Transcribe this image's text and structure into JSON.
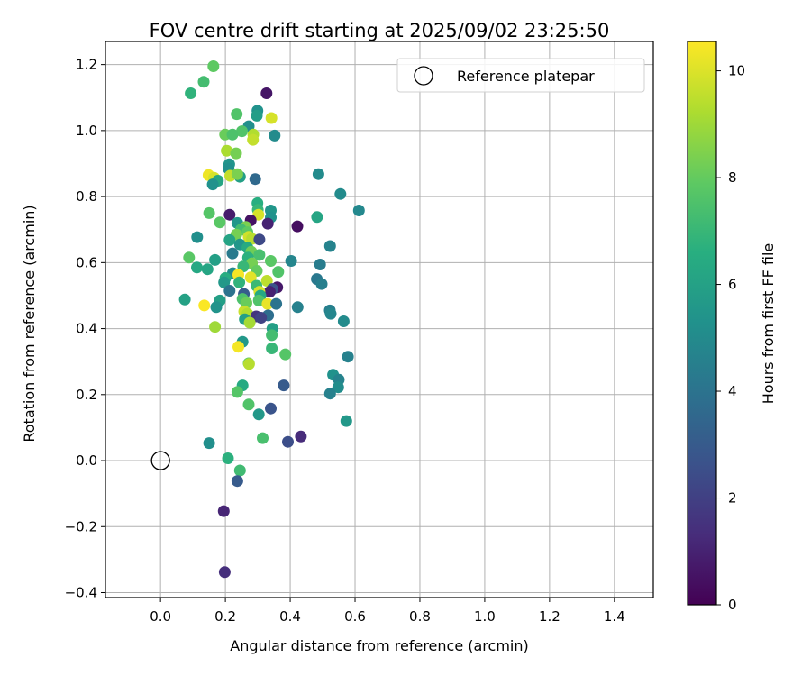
{
  "chart_data": {
    "type": "scatter",
    "title": "FOV centre drift starting at 2025/09/02 23:25:50",
    "xlabel": "Angular distance from reference (arcmin)",
    "ylabel": "Rotation from reference (arcmin)",
    "xlim": [
      -0.17,
      1.52
    ],
    "ylim": [
      -0.415,
      1.27
    ],
    "xticks": [
      0.0,
      0.2,
      0.4,
      0.6,
      0.8,
      1.0,
      1.2,
      1.4
    ],
    "xtick_labels": [
      "0.0",
      "0.2",
      "0.4",
      "0.6",
      "0.8",
      "1.0",
      "1.2",
      "1.4"
    ],
    "yticks": [
      -0.4,
      -0.2,
      0.0,
      0.2,
      0.4,
      0.6,
      0.8,
      1.0,
      1.2
    ],
    "ytick_labels": [
      "−0.4",
      "−0.2",
      "0.0",
      "0.2",
      "0.4",
      "0.6",
      "0.8",
      "1.0",
      "1.2"
    ],
    "grid": true,
    "colormap": "viridis",
    "colorbar": {
      "label": "Hours from first FF file",
      "range": [
        0,
        10.55
      ],
      "ticks": [
        0,
        2,
        4,
        6,
        8,
        10
      ],
      "tick_labels": [
        "0",
        "2",
        "4",
        "6",
        "8",
        "10"
      ]
    },
    "legend": {
      "label": "Reference platepar",
      "position": "top-right"
    },
    "reference_point": {
      "x": 0.0,
      "y": 0.0
    },
    "points": [
      {
        "x": 0.163,
        "y": 1.195,
        "h": 7.9
      },
      {
        "x": 0.133,
        "y": 1.148,
        "h": 7.3
      },
      {
        "x": 0.093,
        "y": 1.113,
        "h": 6.8
      },
      {
        "x": 0.327,
        "y": 1.113,
        "h": 0.6
      },
      {
        "x": 0.299,
        "y": 1.06,
        "h": 5.3
      },
      {
        "x": 0.235,
        "y": 1.05,
        "h": 7.6
      },
      {
        "x": 0.297,
        "y": 1.045,
        "h": 5.8
      },
      {
        "x": 0.342,
        "y": 1.038,
        "h": 9.9
      },
      {
        "x": 0.272,
        "y": 1.013,
        "h": 5.2
      },
      {
        "x": 0.251,
        "y": 0.998,
        "h": 7.6
      },
      {
        "x": 0.199,
        "y": 0.988,
        "h": 8.1
      },
      {
        "x": 0.222,
        "y": 0.988,
        "h": 7.5
      },
      {
        "x": 0.286,
        "y": 0.988,
        "h": 9.3
      },
      {
        "x": 0.352,
        "y": 0.985,
        "h": 5.0
      },
      {
        "x": 0.285,
        "y": 0.972,
        "h": 9.6
      },
      {
        "x": 0.204,
        "y": 0.939,
        "h": 9.2
      },
      {
        "x": 0.233,
        "y": 0.931,
        "h": 8.3
      },
      {
        "x": 0.212,
        "y": 0.898,
        "h": 5.4
      },
      {
        "x": 0.21,
        "y": 0.884,
        "h": 5.2
      },
      {
        "x": 0.487,
        "y": 0.868,
        "h": 5.0
      },
      {
        "x": 0.148,
        "y": 0.865,
        "h": 10.3
      },
      {
        "x": 0.215,
        "y": 0.863,
        "h": 9.6
      },
      {
        "x": 0.245,
        "y": 0.86,
        "h": 5.9
      },
      {
        "x": 0.237,
        "y": 0.868,
        "h": 8.4
      },
      {
        "x": 0.165,
        "y": 0.857,
        "h": 9.9
      },
      {
        "x": 0.292,
        "y": 0.853,
        "h": 3.6
      },
      {
        "x": 0.177,
        "y": 0.848,
        "h": 6.2
      },
      {
        "x": 0.161,
        "y": 0.837,
        "h": 5.3
      },
      {
        "x": 0.555,
        "y": 0.808,
        "h": 5.0
      },
      {
        "x": 0.299,
        "y": 0.78,
        "h": 6.6
      },
      {
        "x": 0.612,
        "y": 0.758,
        "h": 4.9
      },
      {
        "x": 0.34,
        "y": 0.758,
        "h": 5.5
      },
      {
        "x": 0.15,
        "y": 0.75,
        "h": 7.7
      },
      {
        "x": 0.3,
        "y": 0.76,
        "h": 7.0
      },
      {
        "x": 0.302,
        "y": 0.745,
        "h": 9.9
      },
      {
        "x": 0.483,
        "y": 0.738,
        "h": 6.2
      },
      {
        "x": 0.213,
        "y": 0.745,
        "h": 0.8
      },
      {
        "x": 0.34,
        "y": 0.737,
        "h": 5.3
      },
      {
        "x": 0.278,
        "y": 0.728,
        "h": 0.5
      },
      {
        "x": 0.183,
        "y": 0.722,
        "h": 7.8
      },
      {
        "x": 0.237,
        "y": 0.72,
        "h": 5.5
      },
      {
        "x": 0.331,
        "y": 0.718,
        "h": 1.0
      },
      {
        "x": 0.263,
        "y": 0.708,
        "h": 8.4
      },
      {
        "x": 0.422,
        "y": 0.71,
        "h": 0.4
      },
      {
        "x": 0.248,
        "y": 0.7,
        "h": 7.3
      },
      {
        "x": 0.268,
        "y": 0.692,
        "h": 7.9
      },
      {
        "x": 0.234,
        "y": 0.685,
        "h": 8.3
      },
      {
        "x": 0.272,
        "y": 0.678,
        "h": 9.8
      },
      {
        "x": 0.113,
        "y": 0.677,
        "h": 5.2
      },
      {
        "x": 0.282,
        "y": 0.672,
        "h": 9.4
      },
      {
        "x": 0.305,
        "y": 0.67,
        "h": 2.3
      },
      {
        "x": 0.213,
        "y": 0.668,
        "h": 6.1
      },
      {
        "x": 0.523,
        "y": 0.65,
        "h": 4.7
      },
      {
        "x": 0.245,
        "y": 0.655,
        "h": 5.5
      },
      {
        "x": 0.268,
        "y": 0.645,
        "h": 6.4
      },
      {
        "x": 0.28,
        "y": 0.633,
        "h": 8.2
      },
      {
        "x": 0.222,
        "y": 0.628,
        "h": 4.3
      },
      {
        "x": 0.305,
        "y": 0.623,
        "h": 7.4
      },
      {
        "x": 0.088,
        "y": 0.615,
        "h": 7.8
      },
      {
        "x": 0.27,
        "y": 0.615,
        "h": 6.7
      },
      {
        "x": 0.168,
        "y": 0.608,
        "h": 5.9
      },
      {
        "x": 0.403,
        "y": 0.605,
        "h": 4.8
      },
      {
        "x": 0.34,
        "y": 0.605,
        "h": 7.8
      },
      {
        "x": 0.282,
        "y": 0.598,
        "h": 8.3
      },
      {
        "x": 0.492,
        "y": 0.594,
        "h": 4.4
      },
      {
        "x": 0.255,
        "y": 0.588,
        "h": 7.0
      },
      {
        "x": 0.112,
        "y": 0.585,
        "h": 6.3
      },
      {
        "x": 0.145,
        "y": 0.58,
        "h": 6.2
      },
      {
        "x": 0.297,
        "y": 0.575,
        "h": 8.0
      },
      {
        "x": 0.363,
        "y": 0.572,
        "h": 7.6
      },
      {
        "x": 0.223,
        "y": 0.568,
        "h": 5.0
      },
      {
        "x": 0.24,
        "y": 0.563,
        "h": 10.4
      },
      {
        "x": 0.278,
        "y": 0.555,
        "h": 10.1
      },
      {
        "x": 0.2,
        "y": 0.553,
        "h": 6.5
      },
      {
        "x": 0.482,
        "y": 0.55,
        "h": 4.2
      },
      {
        "x": 0.196,
        "y": 0.54,
        "h": 5.6
      },
      {
        "x": 0.328,
        "y": 0.545,
        "h": 9.5
      },
      {
        "x": 0.243,
        "y": 0.54,
        "h": 6.8
      },
      {
        "x": 0.497,
        "y": 0.535,
        "h": 4.5
      },
      {
        "x": 0.296,
        "y": 0.53,
        "h": 7.1
      },
      {
        "x": 0.36,
        "y": 0.525,
        "h": 0.7
      },
      {
        "x": 0.213,
        "y": 0.515,
        "h": 4.0
      },
      {
        "x": 0.345,
        "y": 0.52,
        "h": 2.7
      },
      {
        "x": 0.337,
        "y": 0.512,
        "h": 1.0
      },
      {
        "x": 0.305,
        "y": 0.512,
        "h": 9.9
      },
      {
        "x": 0.257,
        "y": 0.505,
        "h": 3.1
      },
      {
        "x": 0.308,
        "y": 0.5,
        "h": 6.3
      },
      {
        "x": 0.253,
        "y": 0.49,
        "h": 7.5
      },
      {
        "x": 0.075,
        "y": 0.488,
        "h": 6.0
      },
      {
        "x": 0.183,
        "y": 0.485,
        "h": 5.9
      },
      {
        "x": 0.265,
        "y": 0.478,
        "h": 8.1
      },
      {
        "x": 0.303,
        "y": 0.485,
        "h": 7.6
      },
      {
        "x": 0.33,
        "y": 0.475,
        "h": 10.2
      },
      {
        "x": 0.357,
        "y": 0.475,
        "h": 4.0
      },
      {
        "x": 0.135,
        "y": 0.47,
        "h": 10.5
      },
      {
        "x": 0.172,
        "y": 0.465,
        "h": 5.4
      },
      {
        "x": 0.423,
        "y": 0.465,
        "h": 4.6
      },
      {
        "x": 0.522,
        "y": 0.455,
        "h": 4.5
      },
      {
        "x": 0.258,
        "y": 0.452,
        "h": 9.7
      },
      {
        "x": 0.268,
        "y": 0.445,
        "h": 9.3
      },
      {
        "x": 0.525,
        "y": 0.445,
        "h": 4.8
      },
      {
        "x": 0.332,
        "y": 0.44,
        "h": 3.8
      },
      {
        "x": 0.295,
        "y": 0.437,
        "h": 1.6
      },
      {
        "x": 0.31,
        "y": 0.433,
        "h": 2.1
      },
      {
        "x": 0.26,
        "y": 0.428,
        "h": 5.9
      },
      {
        "x": 0.565,
        "y": 0.422,
        "h": 5.0
      },
      {
        "x": 0.275,
        "y": 0.418,
        "h": 9.1
      },
      {
        "x": 0.168,
        "y": 0.405,
        "h": 9.0
      },
      {
        "x": 0.345,
        "y": 0.4,
        "h": 5.9
      },
      {
        "x": 0.343,
        "y": 0.38,
        "h": 7.3
      },
      {
        "x": 0.253,
        "y": 0.36,
        "h": 5.6
      },
      {
        "x": 0.24,
        "y": 0.345,
        "h": 10.4
      },
      {
        "x": 0.343,
        "y": 0.34,
        "h": 7.0
      },
      {
        "x": 0.385,
        "y": 0.322,
        "h": 7.7
      },
      {
        "x": 0.578,
        "y": 0.315,
        "h": 4.6
      },
      {
        "x": 0.272,
        "y": 0.295,
        "h": 7.9
      },
      {
        "x": 0.273,
        "y": 0.293,
        "h": 9.4
      },
      {
        "x": 0.532,
        "y": 0.26,
        "h": 5.3
      },
      {
        "x": 0.55,
        "y": 0.245,
        "h": 4.7
      },
      {
        "x": 0.38,
        "y": 0.228,
        "h": 3.0
      },
      {
        "x": 0.253,
        "y": 0.228,
        "h": 6.4
      },
      {
        "x": 0.548,
        "y": 0.222,
        "h": 5.1
      },
      {
        "x": 0.237,
        "y": 0.208,
        "h": 7.7
      },
      {
        "x": 0.523,
        "y": 0.203,
        "h": 4.6
      },
      {
        "x": 0.272,
        "y": 0.17,
        "h": 7.6
      },
      {
        "x": 0.34,
        "y": 0.158,
        "h": 2.7
      },
      {
        "x": 0.303,
        "y": 0.14,
        "h": 5.6
      },
      {
        "x": 0.573,
        "y": 0.12,
        "h": 5.6
      },
      {
        "x": 0.433,
        "y": 0.073,
        "h": 1.3
      },
      {
        "x": 0.315,
        "y": 0.068,
        "h": 7.4
      },
      {
        "x": 0.393,
        "y": 0.057,
        "h": 2.5
      },
      {
        "x": 0.15,
        "y": 0.053,
        "h": 5.2
      },
      {
        "x": 0.208,
        "y": 0.007,
        "h": 6.7
      },
      {
        "x": 0.245,
        "y": -0.03,
        "h": 7.2
      },
      {
        "x": 0.237,
        "y": -0.062,
        "h": 3.0
      },
      {
        "x": 0.195,
        "y": -0.153,
        "h": 1.1
      },
      {
        "x": 0.198,
        "y": -0.338,
        "h": 1.4
      }
    ]
  }
}
